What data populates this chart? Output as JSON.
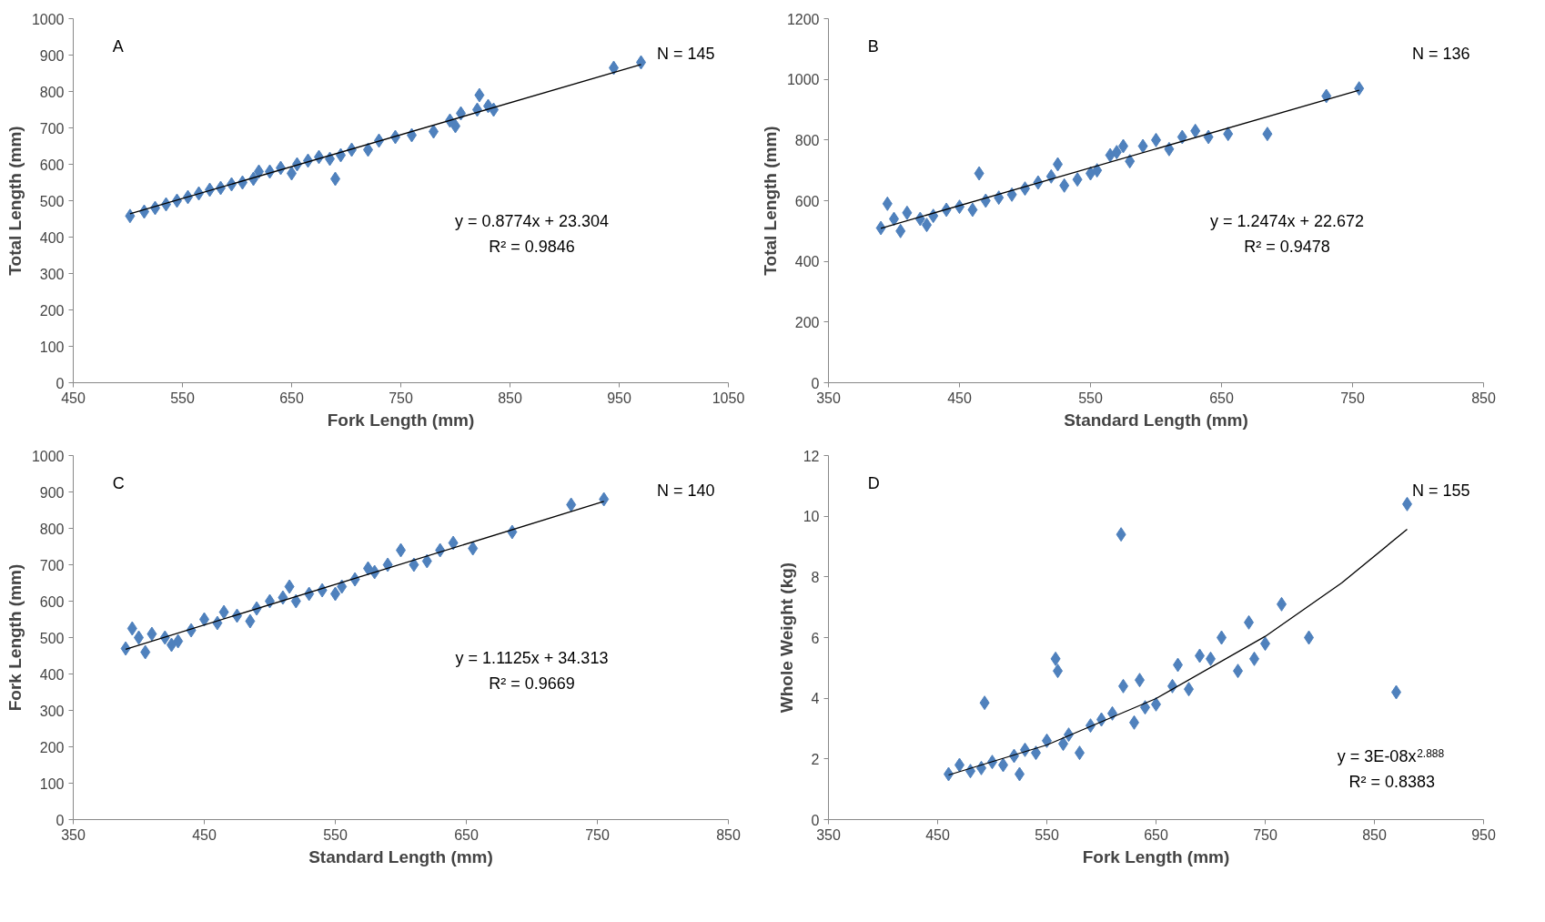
{
  "chart_data": [
    {
      "type": "scatter",
      "xlabel": "Fork Length (mm)",
      "ylabel": "Total Length (mm)",
      "xlim": [
        450,
        1050
      ],
      "xticks": [
        450,
        550,
        650,
        750,
        850,
        950,
        1050
      ],
      "ylim": [
        0,
        1000
      ],
      "yticks": [
        0,
        100,
        200,
        300,
        400,
        500,
        600,
        700,
        800,
        900,
        1000
      ],
      "marker": "diamond",
      "grid": false,
      "annotations": [
        "A",
        "N = 145",
        "y = 0.8774x + 23.304",
        "R² = 0.9846"
      ],
      "series": [
        {
          "color": "#4f81bd",
          "x": [
            502,
            515,
            525,
            535,
            545,
            555,
            565,
            575,
            585,
            595,
            605,
            615,
            620,
            630,
            640,
            650,
            655,
            665,
            675,
            685,
            690,
            695,
            705,
            720,
            730,
            745,
            760,
            780,
            795,
            800,
            805,
            820,
            822,
            830,
            835,
            945,
            970
          ],
          "values": [
            458,
            470,
            480,
            490,
            500,
            510,
            520,
            530,
            535,
            545,
            550,
            560,
            580,
            580,
            590,
            575,
            600,
            610,
            620,
            615,
            560,
            625,
            640,
            640,
            665,
            675,
            680,
            690,
            720,
            705,
            740,
            750,
            790,
            760,
            750,
            865,
            880
          ]
        },
        {
          "type": "line",
          "marker": "none",
          "color": "#000000",
          "x": [
            502,
            970
          ],
          "values": [
            464,
            874
          ]
        }
      ]
    },
    {
      "type": "scatter",
      "xlabel": "Standard Length (mm)",
      "ylabel": "Total Length (mm)",
      "xlim": [
        350,
        850
      ],
      "xticks": [
        350,
        450,
        550,
        650,
        750,
        850
      ],
      "ylim": [
        0,
        1200
      ],
      "yticks": [
        0,
        200,
        400,
        600,
        800,
        1000,
        1200
      ],
      "marker": "diamond",
      "grid": false,
      "annotations": [
        "B",
        "N = 136",
        "y = 1.2474x + 22.672",
        "R² = 0.9478"
      ],
      "series": [
        {
          "color": "#4f81bd",
          "x": [
            390,
            395,
            400,
            405,
            410,
            420,
            425,
            430,
            440,
            450,
            460,
            465,
            470,
            480,
            490,
            500,
            510,
            520,
            525,
            530,
            540,
            550,
            555,
            565,
            570,
            575,
            580,
            590,
            600,
            610,
            620,
            630,
            640,
            655,
            685,
            730,
            755
          ],
          "values": [
            510,
            590,
            540,
            500,
            560,
            540,
            520,
            550,
            570,
            580,
            570,
            690,
            600,
            610,
            620,
            640,
            660,
            680,
            720,
            650,
            670,
            690,
            700,
            750,
            760,
            780,
            730,
            780,
            800,
            770,
            810,
            830,
            810,
            820,
            820,
            945,
            970
          ]
        },
        {
          "type": "line",
          "marker": "none",
          "color": "#000000",
          "x": [
            390,
            755
          ],
          "values": [
            509,
            964
          ]
        }
      ]
    },
    {
      "type": "scatter",
      "xlabel": "Standard Length (mm)",
      "ylabel": "Fork Length (mm)",
      "xlim": [
        350,
        850
      ],
      "xticks": [
        350,
        450,
        550,
        650,
        750,
        850
      ],
      "ylim": [
        0,
        1000
      ],
      "yticks": [
        0,
        100,
        200,
        300,
        400,
        500,
        600,
        700,
        800,
        900,
        1000
      ],
      "marker": "diamond",
      "grid": false,
      "annotations": [
        "C",
        "N = 140",
        "y = 1.1125x + 34.313",
        "R² = 0.9669"
      ],
      "series": [
        {
          "color": "#4f81bd",
          "x": [
            390,
            395,
            400,
            405,
            410,
            420,
            425,
            430,
            440,
            450,
            460,
            465,
            475,
            485,
            490,
            500,
            510,
            515,
            520,
            530,
            540,
            550,
            555,
            565,
            575,
            580,
            590,
            600,
            610,
            620,
            630,
            640,
            655,
            685,
            730,
            755
          ],
          "values": [
            470,
            525,
            500,
            460,
            510,
            500,
            480,
            490,
            520,
            550,
            540,
            570,
            560,
            545,
            580,
            600,
            610,
            640,
            600,
            620,
            630,
            620,
            640,
            660,
            690,
            680,
            700,
            740,
            700,
            710,
            740,
            760,
            745,
            790,
            865,
            880
          ]
        },
        {
          "type": "line",
          "marker": "none",
          "color": "#000000",
          "x": [
            390,
            755
          ],
          "values": [
            468,
            874
          ]
        }
      ]
    },
    {
      "type": "scatter",
      "xlabel": "Fork Length (mm)",
      "ylabel": "Whole Weight (kg)",
      "xlim": [
        350,
        950
      ],
      "xticks": [
        350,
        450,
        550,
        650,
        750,
        850,
        950
      ],
      "ylim": [
        0,
        12
      ],
      "yticks": [
        0,
        2,
        4,
        6,
        8,
        10,
        12
      ],
      "marker": "diamond",
      "grid": false,
      "annotations": [
        "D",
        "N = 155",
        "y = 3E-08x$^{2.888}$",
        "R² = 0.8383"
      ],
      "series": [
        {
          "color": "#4f81bd",
          "x": [
            460,
            470,
            480,
            490,
            493,
            500,
            510,
            520,
            525,
            530,
            540,
            550,
            558,
            560,
            565,
            570,
            580,
            590,
            600,
            610,
            618,
            620,
            630,
            635,
            640,
            650,
            665,
            670,
            680,
            690,
            700,
            710,
            725,
            735,
            740,
            750,
            765,
            790,
            870,
            880
          ],
          "values": [
            1.5,
            1.8,
            1.6,
            1.7,
            3.85,
            1.9,
            1.8,
            2.1,
            1.5,
            2.3,
            2.2,
            2.6,
            5.3,
            4.9,
            2.5,
            2.8,
            2.2,
            3.1,
            3.3,
            3.5,
            9.4,
            4.4,
            3.2,
            4.6,
            3.7,
            3.8,
            4.4,
            5.1,
            4.3,
            5.4,
            5.3,
            6.0,
            4.9,
            6.5,
            5.3,
            5.8,
            7.1,
            6.0,
            4.2,
            10.4
          ]
        },
        {
          "type": "line",
          "marker": "none",
          "color": "#000000",
          "x": [
            460,
            550,
            650,
            750,
            820,
            880
          ],
          "values": [
            1.47,
            2.46,
            3.99,
            6.04,
            7.8,
            9.57
          ]
        }
      ]
    }
  ]
}
